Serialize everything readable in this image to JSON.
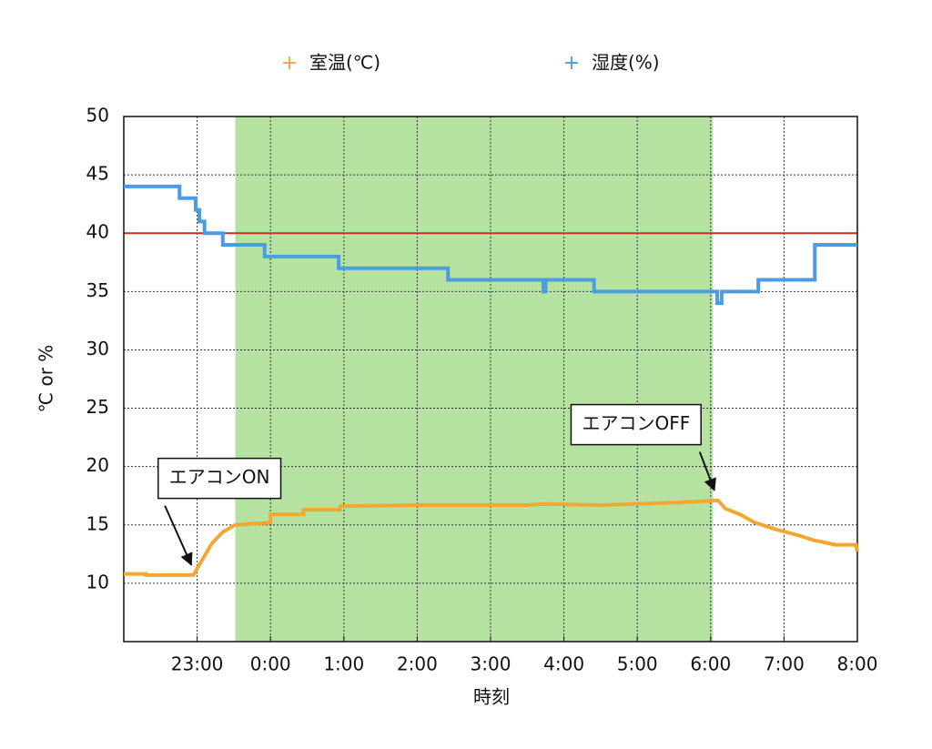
{
  "chart_data": {
    "type": "line",
    "x_label": "時刻",
    "y_label": "℃ or %",
    "xlim": [
      22,
      32
    ],
    "ylim": [
      5,
      50
    ],
    "xticks": [
      {
        "value": 23,
        "label": "23:00"
      },
      {
        "value": 24,
        "label": "0:00"
      },
      {
        "value": 25,
        "label": "1:00"
      },
      {
        "value": 26,
        "label": "2:00"
      },
      {
        "value": 27,
        "label": "3:00"
      },
      {
        "value": 28,
        "label": "4:00"
      },
      {
        "value": 29,
        "label": "5:00"
      },
      {
        "value": 30,
        "label": "6:00"
      },
      {
        "value": 31,
        "label": "7:00"
      },
      {
        "value": 32,
        "label": "8:00"
      }
    ],
    "yticks": [
      10,
      15,
      20,
      25,
      30,
      35,
      40,
      45,
      50
    ],
    "grid": true,
    "shaded_span": {
      "range": [
        23.52,
        30.03
      ],
      "color": "#b6e2a1"
    },
    "hline": {
      "value": 40,
      "color": "#c62f22"
    },
    "series": [
      {
        "name": "室温(℃)",
        "color": "#f2a732",
        "x": [
          22,
          22.3,
          22.3,
          22.95,
          23.05,
          23.2,
          23.35,
          23.52,
          23.75,
          24.0,
          24.0,
          24.45,
          24.45,
          24.95,
          24.95,
          26.0,
          27.5,
          27.7,
          28.5,
          29.5,
          30.1,
          30.2,
          30.4,
          30.6,
          30.9,
          31.2,
          31.4,
          31.7,
          31.98,
          32
        ],
        "values": [
          10.8,
          10.8,
          10.7,
          10.7,
          11.8,
          13.4,
          14.4,
          15,
          15.1,
          15.2,
          15.9,
          15.9,
          16.3,
          16.3,
          16.6,
          16.7,
          16.7,
          16.8,
          16.7,
          16.9,
          17.1,
          16.4,
          15.9,
          15.2,
          14.6,
          14.1,
          13.7,
          13.3,
          13.3,
          12.7
        ]
      },
      {
        "name": "湿度(%)",
        "color": "#4b9be6",
        "x": [
          22,
          22.76,
          22.76,
          22.98,
          22.98,
          23.03,
          23.03,
          23.1,
          23.1,
          23.35,
          23.35,
          23.92,
          23.92,
          24.93,
          24.93,
          26.42,
          26.42,
          27.72,
          27.72,
          27.75,
          27.75,
          28.41,
          28.41,
          30.09,
          30.09,
          30.15,
          30.15,
          30.65,
          30.65,
          31.42,
          31.42,
          32
        ],
        "values": [
          44,
          44,
          43,
          43,
          42,
          42,
          41,
          41,
          40,
          40,
          39,
          39,
          38,
          38,
          37,
          37,
          36,
          36,
          35,
          35,
          36,
          36,
          35,
          35,
          34,
          34,
          35,
          35,
          36,
          36,
          39,
          39
        ]
      }
    ],
    "annotations": [
      {
        "text": "エアコンON",
        "x": 22.92,
        "y": 10.8
      },
      {
        "text": "エアコンOFF",
        "x": 30.05,
        "y": 17.2
      }
    ]
  }
}
